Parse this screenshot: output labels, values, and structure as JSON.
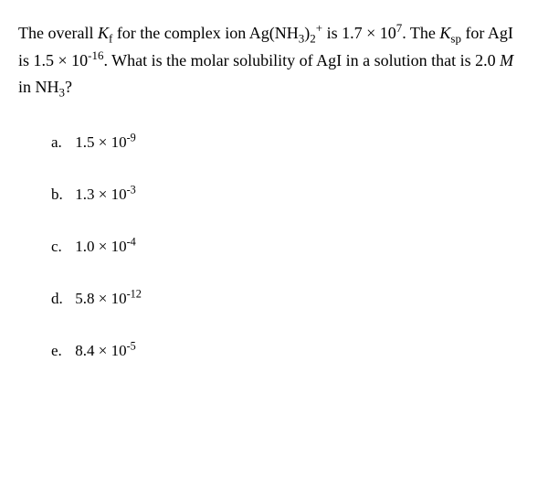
{
  "question": {
    "text_prefix": "The overall ",
    "kf_label": "K",
    "kf_sub": "f",
    "text_mid1": " for the complex ion Ag(NH",
    "nh3_sub1": "3",
    "text_mid2": ")",
    "complex_sub": "2",
    "complex_sup": "+",
    "text_mid3": " is 1.7 × 10",
    "exp1": "7",
    "text_mid4": ". The ",
    "ksp_label": "K",
    "ksp_sub": "sp",
    "text_mid5": " for AgI is 1.5 × 10",
    "exp2": "-16",
    "text_mid6": ". What is the molar solubility of AgI in a solution that is 2.0 ",
    "molar": "M",
    "text_mid7": " in NH",
    "nh3_sub2": "3",
    "text_end": "?"
  },
  "options": [
    {
      "label": "a.",
      "value": "1.5 × 10",
      "exp": "-9"
    },
    {
      "label": "b.",
      "value": "1.3 × 10",
      "exp": "-3"
    },
    {
      "label": "c.",
      "value": "1.0 × 10",
      "exp": "-4"
    },
    {
      "label": "d.",
      "value": "5.8 × 10",
      "exp": "-12"
    },
    {
      "label": "e.",
      "value": "8.4 × 10",
      "exp": "-5"
    }
  ]
}
